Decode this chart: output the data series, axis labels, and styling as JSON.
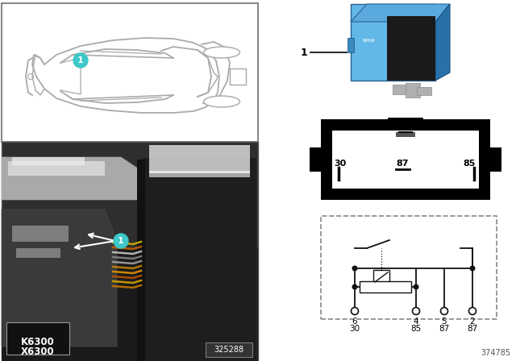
{
  "bg_color": "#ffffff",
  "teal_color": "#3ec8c8",
  "car_line_color": "#aaaaaa",
  "car_box_bg": "#ffffff",
  "car_box_border": "#888888",
  "photo_bg": "#404040",
  "relay_blue_light": "#62b8e8",
  "relay_blue_dark": "#3a88c0",
  "relay_pin_silver": "#b0b0b0",
  "connector_black": "#111111",
  "connector_white": "#ffffff",
  "schematic_dash_color": "#888888",
  "schematic_line_color": "#111111",
  "k6300": "K6300",
  "x6300": "X6300",
  "photo_id": "325288",
  "diagram_id": "374785",
  "pin1_top": "87",
  "pin_left": "30",
  "pin_mid": "87",
  "pin_right": "85",
  "sch_pins_row1": [
    "6",
    "4",
    "5",
    "2"
  ],
  "sch_pins_row2": [
    "30",
    "85",
    "87",
    "87"
  ]
}
